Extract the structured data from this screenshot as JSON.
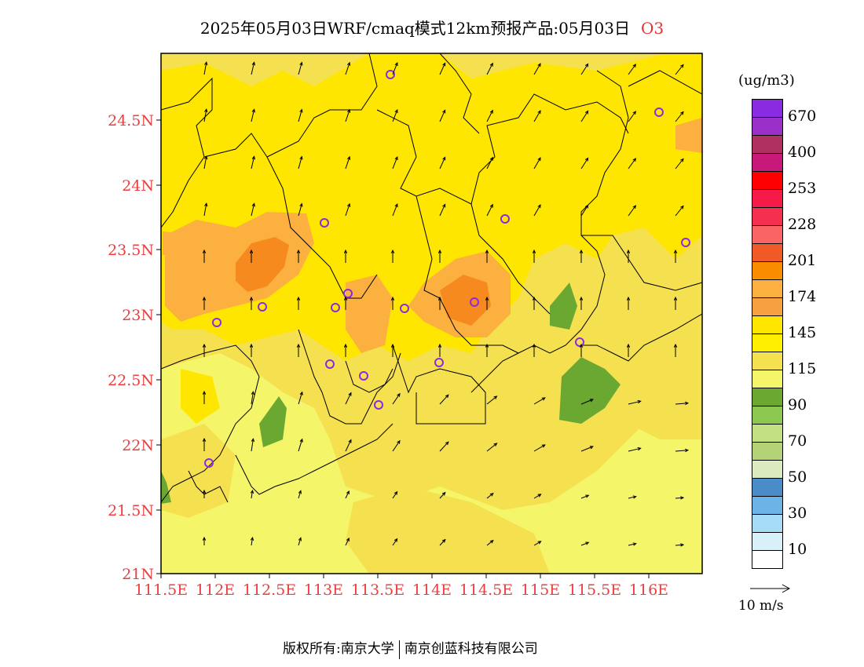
{
  "title": {
    "text": "2025年05月03日WRF/cmaq模式12km预报产品:05月03日",
    "pollutant": "O3"
  },
  "map": {
    "lat_labels": [
      "24.5N",
      "24N",
      "23.5N",
      "23N",
      "22.5N",
      "22N",
      "21.5N",
      "21N"
    ],
    "lon_labels": [
      "111.5E",
      "112E",
      "112.5E",
      "113E",
      "113.5E",
      "114E",
      "114.5E",
      "115E",
      "115.5E",
      "116E"
    ],
    "colors": {
      "base": "#f5f56a",
      "band_145": "#ffe600",
      "band_115": "#f5e050",
      "band_174": "#fbb040",
      "band_201": "#f78a1e",
      "band_90": "#6aa832",
      "station_marker": "#8a2be2",
      "axis_label": "#e84040"
    }
  },
  "legend": {
    "units": "(ug/m3)",
    "colors": [
      "#8a2be2",
      "#9b30c8",
      "#b03060",
      "#c8187a",
      "#ff0000",
      "#f51a48",
      "#f5304e",
      "#fa6464",
      "#f05a28",
      "#fa8c00",
      "#fbb040",
      "#f7a040",
      "#ffe600",
      "#fff000",
      "#f5e050",
      "#f5f56a",
      "#6aa832",
      "#8cc850",
      "#c3e080",
      "#b4d278",
      "#dceac0",
      "#4a8cc8",
      "#6cb4e6",
      "#a6dcf5",
      "#d8f0f8",
      "#ffffff"
    ],
    "labels": [
      "670",
      "400",
      "253",
      "228",
      "201",
      "174",
      "145",
      "115",
      "90",
      "70",
      "50",
      "30",
      "10"
    ]
  },
  "wind_ref": "10 m/s",
  "footer": {
    "left": "版权所有:南京大学",
    "right": "南京创蓝科技有限公司"
  }
}
